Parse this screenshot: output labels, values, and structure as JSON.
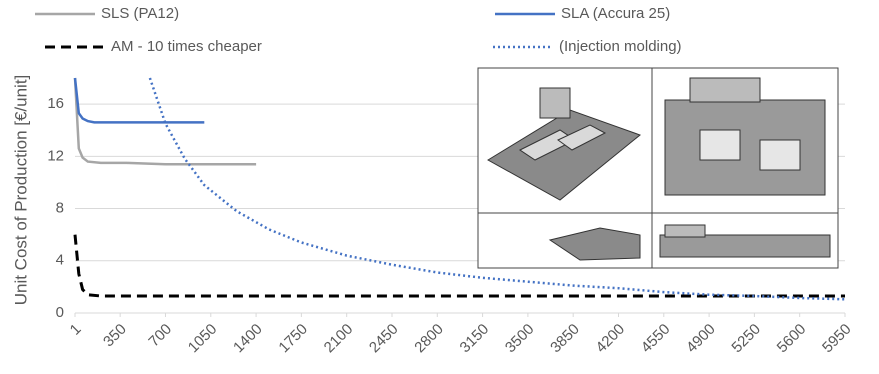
{
  "chart_data": {
    "type": "line",
    "ylabel": "Unit Cost of Production [€/unit]",
    "xlim": [
      1,
      5950
    ],
    "xticks": [
      1,
      350,
      700,
      1050,
      1400,
      1750,
      2100,
      2450,
      2800,
      3150,
      3500,
      3850,
      4200,
      4550,
      4900,
      5250,
      5600,
      5950
    ],
    "ylim": [
      0,
      18
    ],
    "yticks": [
      0,
      4,
      8,
      12,
      16
    ],
    "grid": true,
    "series": [
      {
        "name": "SLS (PA12)",
        "color": "#a6a6a6",
        "dash": "solid",
        "x": [
          1,
          30,
          60,
          100,
          200,
          400,
          700,
          1000,
          1400
        ],
        "values": [
          18,
          12.6,
          11.9,
          11.6,
          11.5,
          11.5,
          11.4,
          11.4,
          11.4
        ]
      },
      {
        "name": "SLA (Accura 25)",
        "color": "#4472c4",
        "dash": "solid",
        "x": [
          1,
          30,
          60,
          100,
          150,
          300,
          600,
          1000
        ],
        "values": [
          18,
          15.3,
          14.9,
          14.7,
          14.6,
          14.6,
          14.6,
          14.6
        ]
      },
      {
        "name": "AM - 10 times cheaper",
        "color": "#000000",
        "dash": "dashed",
        "x": [
          1,
          30,
          60,
          100,
          200,
          1000,
          3000,
          5950
        ],
        "values": [
          6,
          3,
          1.8,
          1.4,
          1.3,
          1.3,
          1.3,
          1.3
        ]
      },
      {
        "name": "(Injection molding)",
        "color": "#4472c4",
        "dash": "dotted",
        "x": [
          580,
          700,
          850,
          1000,
          1250,
          1500,
          1750,
          2100,
          2450,
          2800,
          3150,
          3500,
          3850,
          4200,
          4550,
          4900,
          5250,
          5600,
          5950
        ],
        "values": [
          18,
          14.5,
          11.8,
          9.8,
          7.8,
          6.4,
          5.4,
          4.4,
          3.7,
          3.1,
          2.7,
          2.4,
          2.1,
          1.9,
          1.6,
          1.4,
          1.3,
          1.15,
          1.05
        ]
      }
    ]
  }
}
